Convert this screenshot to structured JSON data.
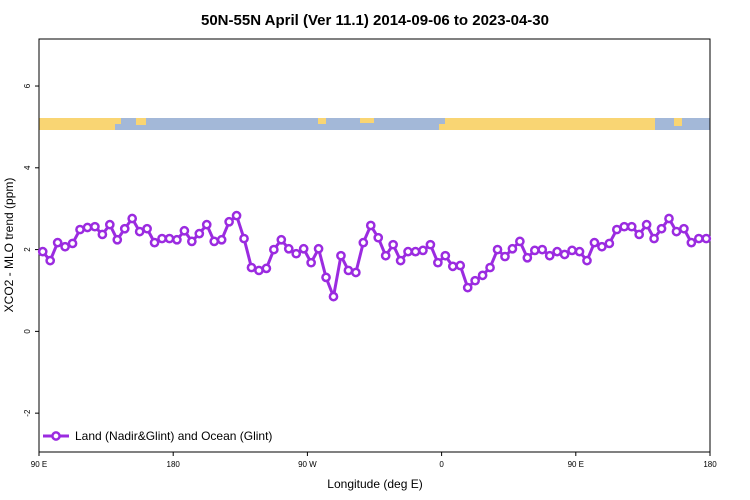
{
  "chart_data": {
    "type": "line",
    "title": "50N-55N April (Ver 11.1)   2014-09-06 to 2023-04-30",
    "x_label": "Longitude (deg E)",
    "y_label": "XCO2 - MLO trend (ppm)",
    "xlim": [
      90,
      540
    ],
    "ylim": [
      -2.95,
      7.15
    ],
    "xticks": [
      {
        "value": 90,
        "label": "90 E"
      },
      {
        "value": 180,
        "label": "180"
      },
      {
        "value": 270,
        "label": "90 W"
      },
      {
        "value": 360,
        "label": "0"
      },
      {
        "value": 450,
        "label": "90 E"
      },
      {
        "value": 540,
        "label": "180"
      }
    ],
    "yticks": [
      -2,
      0,
      2,
      4,
      6
    ],
    "legend": "bottom-left",
    "x": [
      92.5,
      97.5,
      102.5,
      107.5,
      112.5,
      117.5,
      122.5,
      127.5,
      132.5,
      137.5,
      142.5,
      147.5,
      152.5,
      157.5,
      162.5,
      167.5,
      172.5,
      177.5,
      182.5,
      187.5,
      192.5,
      197.5,
      202.5,
      207.5,
      212.5,
      217.5,
      222.5,
      227.5,
      232.5,
      237.5,
      242.5,
      247.5,
      252.5,
      257.5,
      262.5,
      267.5,
      272.5,
      277.5,
      282.5,
      287.5,
      292.5,
      297.5,
      302.5,
      307.5,
      312.5,
      317.5,
      322.5,
      327.5,
      332.5,
      337.5,
      342.5,
      347.5,
      352.5,
      357.5,
      362.5,
      367.5,
      372.5,
      377.5,
      382.5,
      387.5,
      392.5,
      397.5,
      402.5,
      407.5,
      412.5,
      417.5,
      422.5,
      427.5,
      432.5,
      437.5,
      442.5,
      447.5,
      452.5,
      457.5,
      462.5,
      467.5,
      472.5,
      477.5,
      482.5,
      487.5,
      492.5,
      497.5,
      502.5,
      507.5,
      512.5,
      517.5,
      522.5,
      527.5,
      532.5,
      537.5
    ],
    "series": [
      {
        "name": "Land (Nadir&Glint) and Ocean (Glint)",
        "color": "#9b2be0",
        "values": [
          1.95,
          1.73,
          2.17,
          2.07,
          2.15,
          2.49,
          2.54,
          2.56,
          2.37,
          2.61,
          2.24,
          2.51,
          2.76,
          2.44,
          2.51,
          2.17,
          2.27,
          2.27,
          2.24,
          2.46,
          2.2,
          2.39,
          2.61,
          2.2,
          2.24,
          2.68,
          2.83,
          2.27,
          1.56,
          1.49,
          1.54,
          2.0,
          2.24,
          2.02,
          1.9,
          2.02,
          1.68,
          2.02,
          1.32,
          0.85,
          1.85,
          1.49,
          1.44,
          2.17,
          2.59,
          2.29,
          1.85,
          2.12,
          1.73,
          1.95,
          1.95,
          1.98,
          2.12,
          1.68,
          1.85,
          1.59,
          1.61,
          1.07,
          1.24,
          1.37,
          1.56,
          2.0,
          1.83,
          2.02,
          2.2,
          1.8,
          1.98,
          2.0,
          1.85,
          1.95,
          1.88,
          1.98,
          1.95,
          1.73,
          2.17,
          2.07,
          2.15,
          2.49,
          2.56,
          2.56,
          2.37,
          2.61,
          2.27,
          2.51,
          2.76,
          2.44,
          2.51,
          2.17,
          2.27,
          2.27
        ]
      }
    ]
  }
}
